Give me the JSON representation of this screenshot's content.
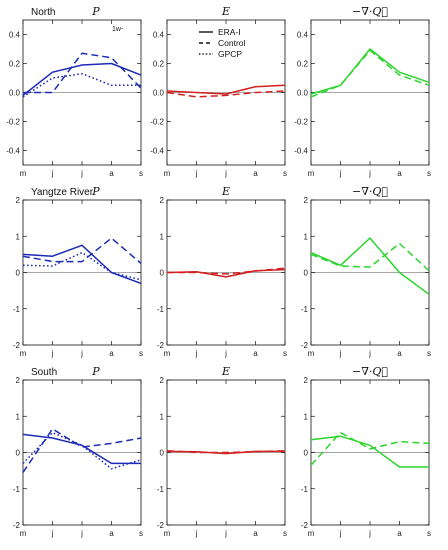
{
  "chart_data": {
    "type": "line",
    "x_categories": [
      "m",
      "j",
      "j",
      "a",
      "s"
    ],
    "legend": {
      "placement": "top of middle column",
      "entries": [
        "ERA-I",
        "Control",
        "GPCP"
      ],
      "styles": [
        "solid",
        "dashed",
        "dotted"
      ]
    },
    "colors": {
      "P": "#1d2bb8",
      "E": "#d42020",
      "div": "#2ad62a"
    },
    "small_label": "1w-",
    "rows": [
      {
        "region": "North",
        "ylim": [
          -0.5,
          0.5
        ],
        "yticks": [
          -0.4,
          -0.2,
          0.0,
          0.2,
          0.4
        ],
        "ytick_labels": [
          "-0.4",
          "-0.2",
          "0.0",
          "0.2",
          "0.4"
        ],
        "panels": [
          {
            "var": "P",
            "color_key": "P",
            "series": [
              {
                "name": "ERA-I",
                "style": "solid",
                "values": [
                  -0.02,
                  0.14,
                  0.19,
                  0.2,
                  0.12
                ]
              },
              {
                "name": "Control",
                "style": "dashed",
                "values": [
                  0.0,
                  0.0,
                  0.27,
                  0.24,
                  0.03
                ]
              },
              {
                "name": "GPCP",
                "style": "dotted",
                "values": [
                  -0.03,
                  0.1,
                  0.13,
                  0.05,
                  0.05
                ]
              }
            ]
          },
          {
            "var": "E",
            "color_key": "E",
            "series": [
              {
                "name": "ERA-I",
                "style": "solid",
                "values": [
                  0.01,
                  0.0,
                  -0.01,
                  0.04,
                  0.05
                ]
              },
              {
                "name": "Control",
                "style": "dashed",
                "values": [
                  0.0,
                  -0.03,
                  -0.02,
                  0.0,
                  0.01
                ]
              }
            ]
          },
          {
            "var": "−∇·Q⃗",
            "color_key": "div",
            "series": [
              {
                "name": "ERA-I",
                "style": "solid",
                "values": [
                  -0.01,
                  0.05,
                  0.3,
                  0.14,
                  0.07
                ]
              },
              {
                "name": "Control",
                "style": "dashed",
                "values": [
                  -0.03,
                  0.05,
                  0.29,
                  0.12,
                  0.05
                ]
              }
            ]
          }
        ]
      },
      {
        "region": "Yangtze River",
        "ylim": [
          -2,
          2
        ],
        "yticks": [
          -2,
          -1,
          0,
          1,
          2
        ],
        "ytick_labels": [
          "-2",
          "-1",
          "0",
          "1",
          "2"
        ],
        "panels": [
          {
            "var": "P",
            "color_key": "P",
            "series": [
              {
                "name": "ERA-I",
                "style": "solid",
                "values": [
                  0.5,
                  0.45,
                  0.75,
                  0.0,
                  -0.3
                ]
              },
              {
                "name": "Control",
                "style": "dashed",
                "values": [
                  0.45,
                  0.3,
                  0.3,
                  0.95,
                  0.25
                ]
              },
              {
                "name": "GPCP",
                "style": "dotted",
                "values": [
                  0.2,
                  0.18,
                  0.55,
                  0.0,
                  -0.2
                ]
              }
            ]
          },
          {
            "var": "E",
            "color_key": "E",
            "series": [
              {
                "name": "ERA-I",
                "style": "solid",
                "values": [
                  0.0,
                  0.02,
                  -0.12,
                  0.05,
                  0.08
                ]
              },
              {
                "name": "Control",
                "style": "dashed",
                "values": [
                  0.0,
                  0.0,
                  -0.04,
                  0.04,
                  0.12
                ]
              }
            ]
          },
          {
            "var": "−∇·Q⃗",
            "color_key": "div",
            "series": [
              {
                "name": "ERA-I",
                "style": "solid",
                "values": [
                  0.55,
                  0.2,
                  0.95,
                  0.0,
                  -0.6
                ]
              },
              {
                "name": "Control",
                "style": "dashed",
                "values": [
                  0.5,
                  0.18,
                  0.15,
                  0.8,
                  0.05
                ]
              }
            ]
          }
        ]
      },
      {
        "region": "South",
        "ylim": [
          -2,
          2
        ],
        "yticks": [
          -2,
          -1,
          0,
          1,
          2
        ],
        "ytick_labels": [
          "-2",
          "-1",
          "0",
          "1",
          "2"
        ],
        "panels": [
          {
            "var": "P",
            "color_key": "P",
            "series": [
              {
                "name": "ERA-I",
                "style": "solid",
                "values": [
                  0.5,
                  0.4,
                  0.2,
                  -0.3,
                  -0.3
                ]
              },
              {
                "name": "Control",
                "style": "dashed",
                "values": [
                  -0.55,
                  0.65,
                  0.15,
                  0.25,
                  0.4
                ]
              },
              {
                "name": "GPCP",
                "style": "dotted",
                "values": [
                  -0.3,
                  0.55,
                  0.2,
                  -0.45,
                  -0.2
                ]
              }
            ]
          },
          {
            "var": "E",
            "color_key": "E",
            "series": [
              {
                "name": "ERA-I",
                "style": "solid",
                "values": [
                  0.03,
                  0.02,
                  -0.03,
                  0.03,
                  0.03
                ]
              },
              {
                "name": "Control",
                "style": "dashed",
                "values": [
                  0.05,
                  0.0,
                  0.0,
                  0.02,
                  0.05
                ]
              }
            ]
          },
          {
            "var": "−∇·Q⃗",
            "color_key": "div",
            "series": [
              {
                "name": "ERA-I",
                "style": "solid",
                "values": [
                  0.35,
                  0.45,
                  0.2,
                  -0.4,
                  -0.4
                ]
              },
              {
                "name": "Control",
                "style": "dashed",
                "values": [
                  -0.35,
                  0.55,
                  0.1,
                  0.3,
                  0.25
                ]
              }
            ]
          }
        ]
      }
    ]
  }
}
